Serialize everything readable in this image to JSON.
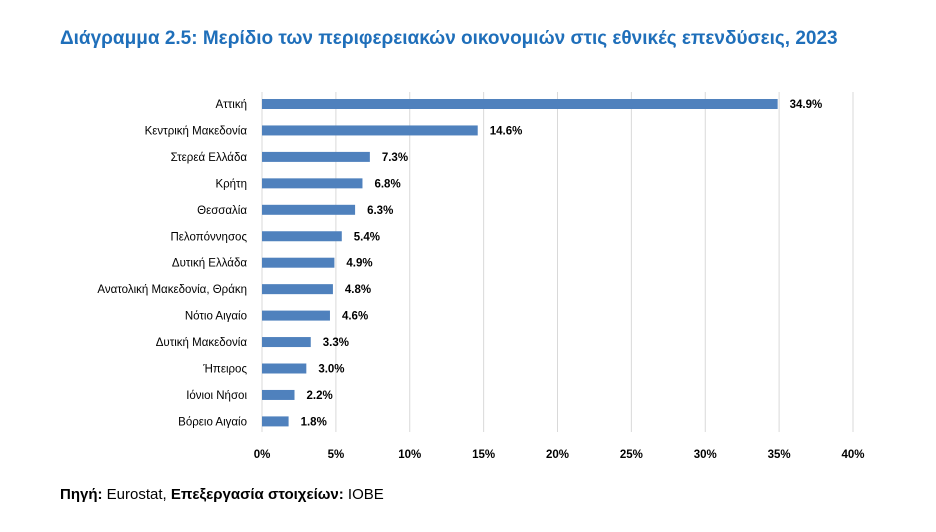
{
  "chart_data": {
    "type": "bar",
    "orientation": "horizontal",
    "title": "Διάγραμμα 2.5: Μερίδιο των περιφερειακών οικονομιών στις εθνικές επενδύσεις, 2023",
    "categories": [
      "Αττική",
      "Κεντρική Μακεδονία",
      "Στερεά Ελλάδα",
      "Κρήτη",
      "Θεσσαλία",
      "Πελοπόννησος",
      "Δυτική Ελλάδα",
      "Ανατολική Μακεδονία, Θράκη",
      "Νότιο Αιγαίο",
      "Δυτική Μακεδονία",
      "Ήπειρος",
      "Ιόνιοι Νήσοι",
      "Βόρειο Αιγαίο"
    ],
    "values": [
      34.9,
      14.6,
      7.3,
      6.8,
      6.3,
      5.4,
      4.9,
      4.8,
      4.6,
      3.3,
      3.0,
      2.2,
      1.8
    ],
    "value_labels": [
      "34.9%",
      "14.6%",
      "7.3%",
      "6.8%",
      "6.3%",
      "5.4%",
      "4.9%",
      "4.8%",
      "4.6%",
      "3.3%",
      "3.0%",
      "2.2%",
      "1.8%"
    ],
    "xlim": [
      0,
      40
    ],
    "x_ticks": [
      0,
      5,
      10,
      15,
      20,
      25,
      30,
      35,
      40
    ],
    "x_tick_labels": [
      "0%",
      "5%",
      "10%",
      "15%",
      "20%",
      "25%",
      "30%",
      "35%",
      "40%"
    ],
    "grid": true,
    "legend": "none",
    "bar_color": "#4f81bd",
    "title_color": "#1f6fba",
    "grid_color": "#d9d9d9"
  },
  "source": {
    "label": "Πηγή:",
    "value": " Eurostat, ",
    "processing_label": "Επεξεργασία στοιχείων:",
    "processing_value": " ΙΟΒΕ"
  }
}
